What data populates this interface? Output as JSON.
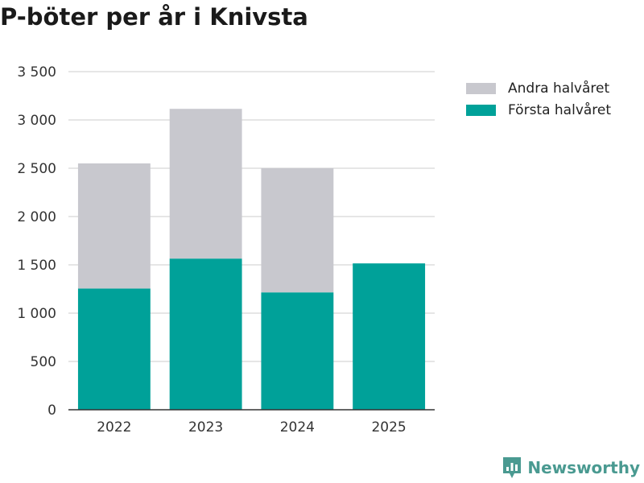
{
  "header": {
    "title": "P-böter per år i Knivsta"
  },
  "brand": {
    "name": "Newsworthy",
    "icon": "newsworthy-logo-icon",
    "color": "#4a9a91"
  },
  "chart_data": {
    "type": "bar",
    "stacked": true,
    "title": "P-böter per år i Knivsta",
    "xlabel": "",
    "ylabel": "",
    "categories": [
      "2022",
      "2023",
      "2024",
      "2025"
    ],
    "series": [
      {
        "name": "Första halvåret",
        "color": "#00a199",
        "values": [
          1255,
          1565,
          1215,
          1515
        ]
      },
      {
        "name": "Andra halvåret",
        "color": "#c8c8ce",
        "values": [
          1295,
          1550,
          1285,
          0
        ]
      }
    ],
    "ylim": [
      0,
      3500
    ],
    "yticks": [
      0,
      500,
      1000,
      1500,
      2000,
      2500,
      3000,
      3500
    ],
    "ytick_labels": [
      "0",
      "500",
      "1 000",
      "1 500",
      "2 000",
      "2 500",
      "3 000",
      "3 500"
    ],
    "grid": true,
    "legend_position": "top-right",
    "legend": [
      {
        "name": "Andra halvåret",
        "color": "#c8c8ce"
      },
      {
        "name": "Första halvåret",
        "color": "#00a199"
      }
    ]
  }
}
